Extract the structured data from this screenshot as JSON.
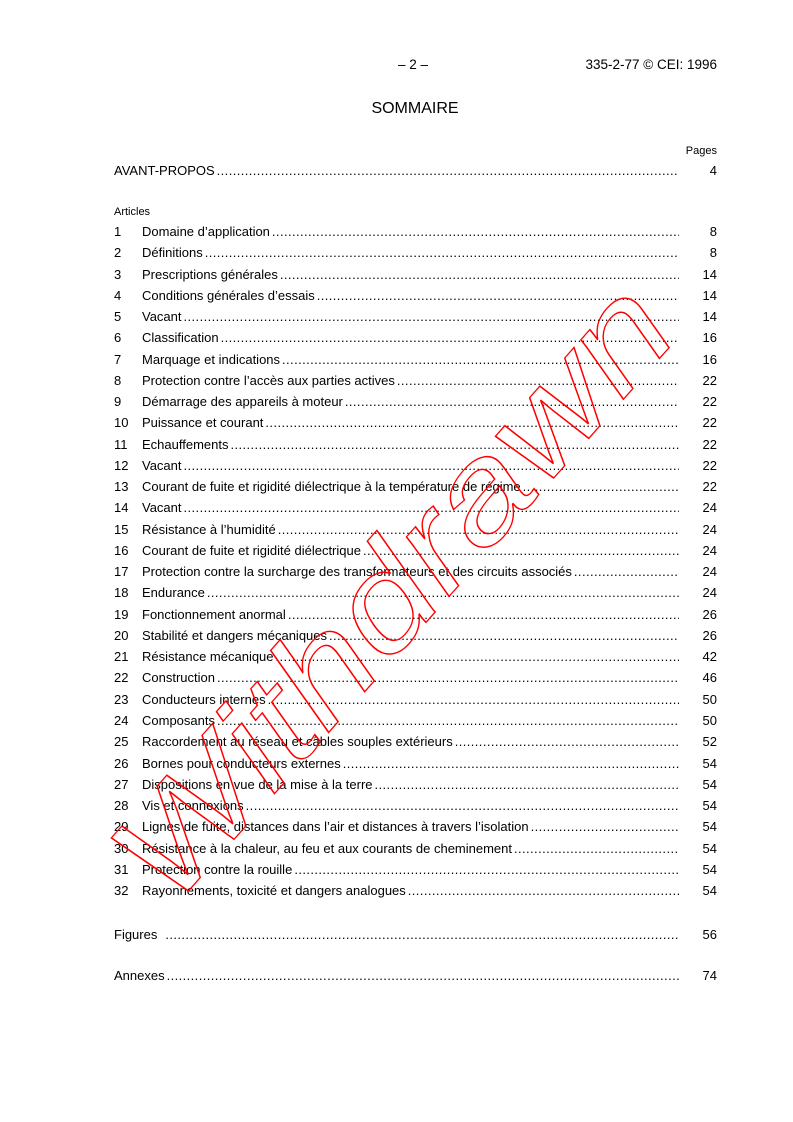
{
  "header": {
    "page_number": "– 2 –",
    "reference": "335-2-77 © CEI: 1996"
  },
  "title": "SOMMAIRE",
  "pages_label": "Pages",
  "foreword": {
    "label": "AVANT-PROPOS",
    "page": "4"
  },
  "articles_label": "Articles",
  "articles": [
    {
      "num": "1",
      "label": "Domaine d’application",
      "page": "8"
    },
    {
      "num": "2",
      "label": "Définitions",
      "page": "8"
    },
    {
      "num": "3",
      "label": "Prescriptions générales",
      "page": "14"
    },
    {
      "num": "4",
      "label": "Conditions générales d’essais",
      "page": "14"
    },
    {
      "num": "5",
      "label": "Vacant",
      "page": "14"
    },
    {
      "num": "6",
      "label": "Classification",
      "page": "16"
    },
    {
      "num": "7",
      "label": "Marquage et indications",
      "page": "16"
    },
    {
      "num": "8",
      "label": "Protection contre l’accès aux parties actives",
      "page": "22"
    },
    {
      "num": "9",
      "label": "Démarrage des appareils à moteur",
      "page": "22"
    },
    {
      "num": "10",
      "label": "Puissance et courant",
      "page": "22"
    },
    {
      "num": "11",
      "label": "Echauffements",
      "page": "22"
    },
    {
      "num": "12",
      "label": "Vacant",
      "page": "22"
    },
    {
      "num": "13",
      "label": "Courant de fuite et rigidité diélectrique à la température de régime",
      "page": "22"
    },
    {
      "num": "14",
      "label": "Vacant",
      "page": "24"
    },
    {
      "num": "15",
      "label": "Résistance à l’humidité",
      "page": "24"
    },
    {
      "num": "16",
      "label": "Courant de fuite et rigidité diélectrique",
      "page": "24"
    },
    {
      "num": "17",
      "label": "Protection contre la surcharge des transformateurs et des circuits associés",
      "page": "24"
    },
    {
      "num": "18",
      "label": "Endurance",
      "page": "24"
    },
    {
      "num": "19",
      "label": "Fonctionnement anormal",
      "page": "26"
    },
    {
      "num": "20",
      "label": "Stabilité et dangers mécaniques",
      "page": "26"
    },
    {
      "num": "21",
      "label": "Résistance mécanique",
      "page": "42"
    },
    {
      "num": "22",
      "label": "Construction",
      "page": "46"
    },
    {
      "num": "23",
      "label": "Conducteurs internes",
      "page": "50"
    },
    {
      "num": "24",
      "label": "Composants",
      "page": "50"
    },
    {
      "num": "25",
      "label": "Raccordement au réseau et câbles souples extérieurs",
      "page": "52"
    },
    {
      "num": "26",
      "label": "Bornes pour conducteurs externes",
      "page": "54"
    },
    {
      "num": "27",
      "label": "Dispositions en vue de la mise à la terre",
      "page": "54"
    },
    {
      "num": "28",
      "label": "Vis et connexions",
      "page": "54"
    },
    {
      "num": "29",
      "label": "Lignes de fuite, distances dans l’air et distances à travers l’isolation",
      "page": "54"
    },
    {
      "num": "30",
      "label": "Résistance à la chaleur, au feu et aux courants de cheminement",
      "page": "54"
    },
    {
      "num": "31",
      "label": "Protection contre la rouille",
      "page": "54"
    },
    {
      "num": "32",
      "label": "Rayonnements, toxicité et dangers analogues",
      "page": "54"
    }
  ],
  "figures": {
    "label": "Figures",
    "page": "56"
  },
  "annexes": {
    "label": "Annexes",
    "page": "74"
  },
  "watermark": {
    "text": "Withdrawn",
    "color": "#ff0000"
  }
}
